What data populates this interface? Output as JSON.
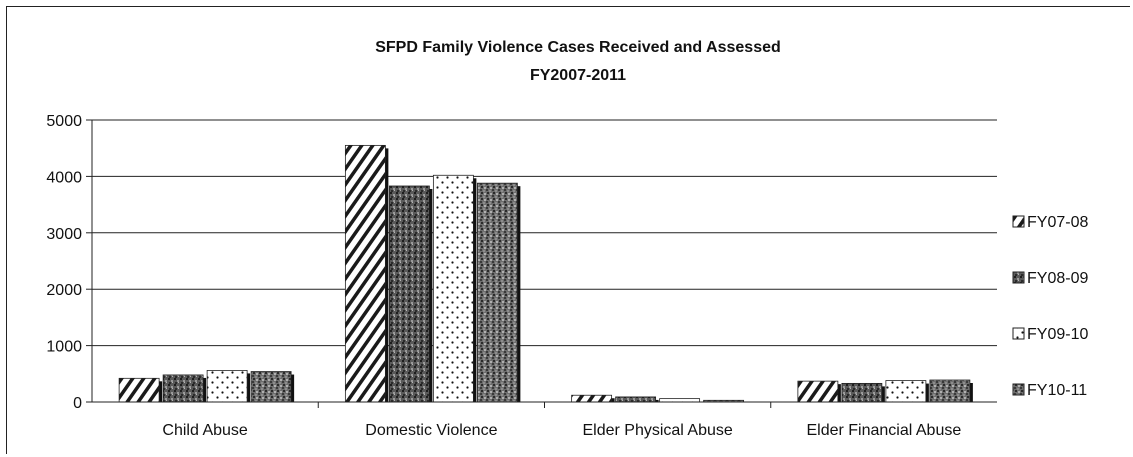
{
  "chart_data": {
    "type": "bar",
    "title": "SFPD Family Violence Cases Received and Assessed",
    "subtitle": "FY2007-2011",
    "xlabel": "",
    "ylabel": "",
    "categories": [
      "Child Abuse",
      "Domestic Violence",
      "Elder Physical Abuse",
      "Elder Financial Abuse"
    ],
    "series": [
      {
        "name": "FY07-08",
        "values": [
          420,
          4550,
          120,
          370
        ],
        "pattern": "diagonal-hatch"
      },
      {
        "name": "FY08-09",
        "values": [
          480,
          3830,
          90,
          330
        ],
        "pattern": "dark-speckle"
      },
      {
        "name": "FY09-10",
        "values": [
          560,
          4020,
          60,
          380
        ],
        "pattern": "dots"
      },
      {
        "name": "FY10-11",
        "values": [
          540,
          3880,
          30,
          390
        ],
        "pattern": "dark-speckle-2"
      }
    ],
    "ylim": [
      0,
      5000
    ],
    "yticks": [
      0,
      1000,
      2000,
      3000,
      4000,
      5000
    ],
    "ytick_labels": [
      "0",
      "1000",
      "2000",
      "3000",
      "4000",
      "5000"
    ],
    "grid": true,
    "legend_position": "right"
  }
}
